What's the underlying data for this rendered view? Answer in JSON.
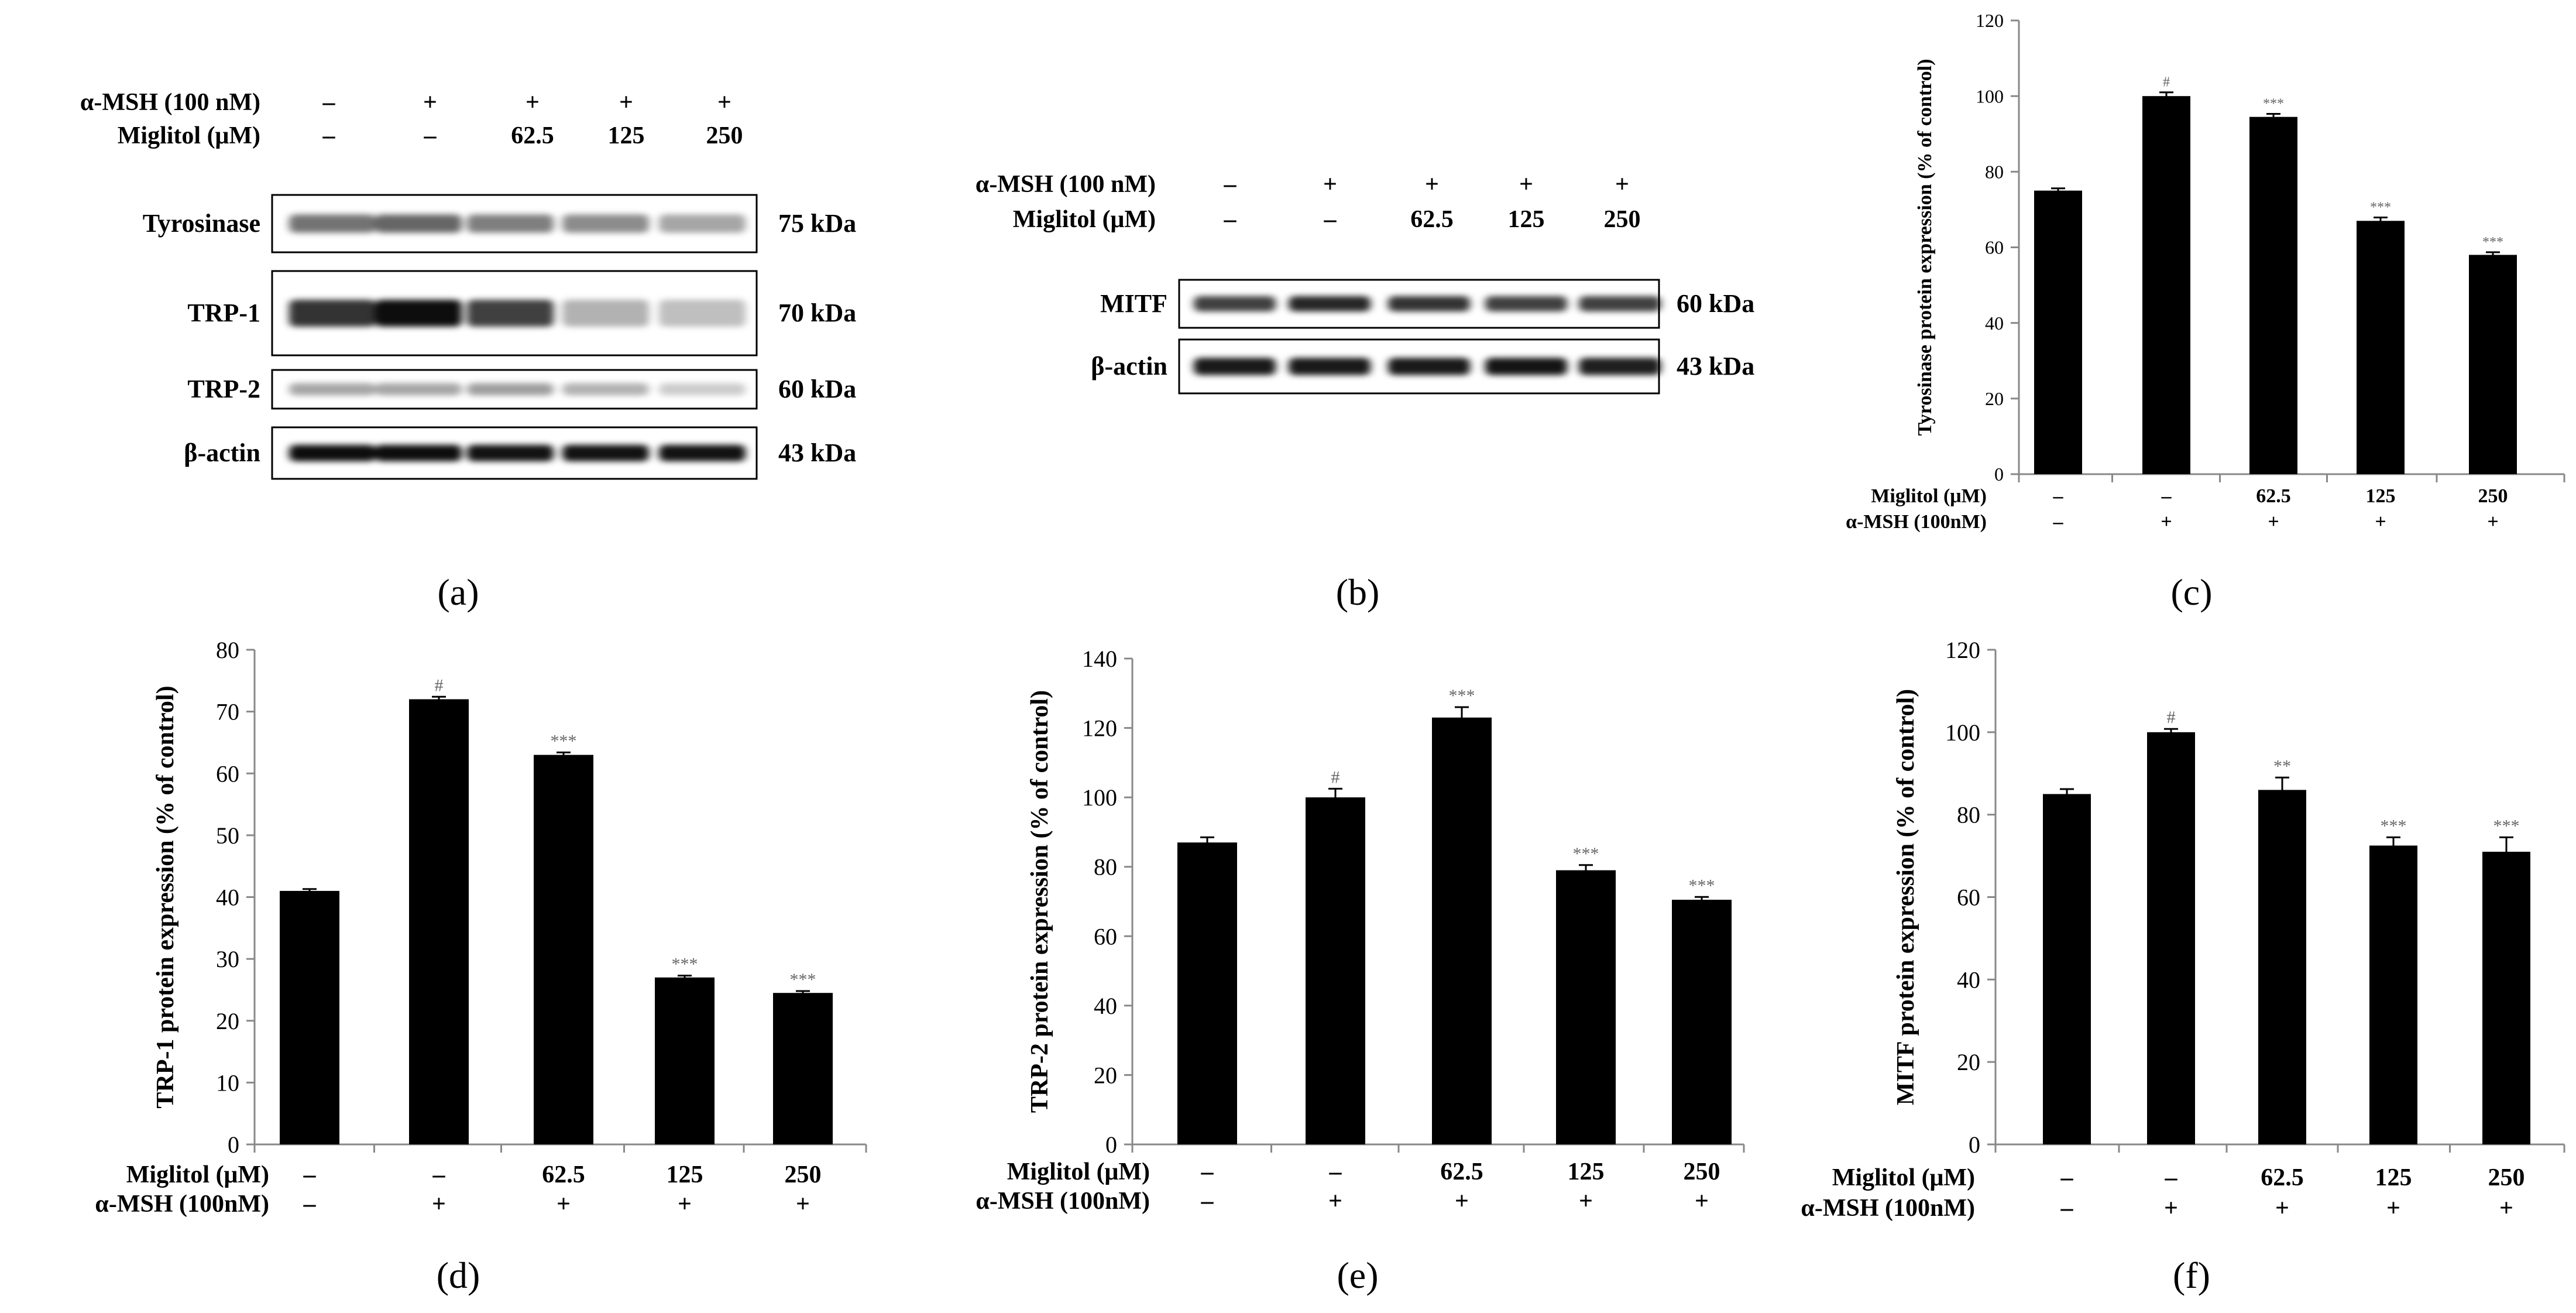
{
  "blots": [
    {
      "panel_label": "(a)",
      "treatments": [
        {
          "label": "α-MSH (100 nM)",
          "values": [
            "–",
            "+",
            "+",
            "+",
            "+"
          ]
        },
        {
          "label": "Miglitol (μM)",
          "values": [
            "–",
            "–",
            "62.5",
            "125",
            "250"
          ]
        }
      ],
      "proteins": [
        {
          "name": "Tyrosinase",
          "size": "75 kDa",
          "intensity": [
            0.55,
            0.6,
            0.5,
            0.45,
            0.35
          ]
        },
        {
          "name": "TRP-1",
          "size": "70 kDa",
          "intensity": [
            0.8,
            0.95,
            0.75,
            0.3,
            0.25
          ]
        },
        {
          "name": "TRP-2",
          "size": "60 kDa",
          "intensity": [
            0.35,
            0.35,
            0.38,
            0.3,
            0.2
          ]
        },
        {
          "name": "β-actin",
          "size": "43 kDa",
          "intensity": [
            0.95,
            0.95,
            0.93,
            0.93,
            0.93
          ]
        }
      ]
    },
    {
      "panel_label": "(b)",
      "treatments": [
        {
          "label": "α-MSH (100 nM)",
          "values": [
            "–",
            "+",
            "+",
            "+",
            "+"
          ]
        },
        {
          "label": "Miglitol (μM)",
          "values": [
            "–",
            "–",
            "62.5",
            "125",
            "250"
          ]
        }
      ],
      "proteins": [
        {
          "name": "MITF",
          "size": "60 kDa",
          "intensity": [
            0.75,
            0.85,
            0.8,
            0.75,
            0.75
          ]
        },
        {
          "name": "β-actin",
          "size": "43 kDa",
          "intensity": [
            0.9,
            0.9,
            0.9,
            0.92,
            0.88
          ]
        }
      ]
    }
  ],
  "chart_data": [
    {
      "type": "bar",
      "panel_label": "(c)",
      "ylabel": "Tyrosinase  protein expression  (% of control)",
      "ylim": [
        0,
        120
      ],
      "yticks": [
        "0",
        "20",
        "40",
        "60",
        "80",
        "100",
        "120"
      ],
      "values": [
        75,
        100,
        94.5,
        67,
        58
      ],
      "errors": [
        0.6,
        1.0,
        0.8,
        0.9,
        0.7
      ],
      "annotations": [
        "",
        "#",
        "***",
        "***",
        "***"
      ],
      "row_labels": [
        "Miglitol (μM)",
        "α-MSH (100nM)"
      ],
      "miglitol": [
        "–",
        "–",
        "62.5",
        "125",
        "250"
      ],
      "msh": [
        "–",
        "+",
        "+",
        "+",
        "+"
      ]
    },
    {
      "type": "bar",
      "panel_label": "(d)",
      "ylabel": "TRP-1 protein expression  (% of control)",
      "ylim": [
        0,
        80
      ],
      "yticks": [
        "0",
        "10",
        "20",
        "30",
        "40",
        "50",
        "60",
        "70",
        "80"
      ],
      "values": [
        41,
        72,
        63,
        27,
        24.5
      ],
      "errors": [
        0.3,
        0.4,
        0.4,
        0.3,
        0.3
      ],
      "annotations": [
        "",
        "#",
        "***",
        "***",
        "***"
      ],
      "row_labels": [
        "Miglitol (μM)",
        "α-MSH (100nM)"
      ],
      "miglitol": [
        "–",
        "–",
        "62.5",
        "125",
        "250"
      ],
      "msh": [
        "–",
        "+",
        "+",
        "+",
        "+"
      ]
    },
    {
      "type": "bar",
      "panel_label": "(e)",
      "ylabel": "TRP-2  protein expression   (% of control)",
      "ylim": [
        0,
        140
      ],
      "yticks": [
        "0",
        "20",
        "40",
        "60",
        "80",
        "100",
        "120",
        "140"
      ],
      "values": [
        87,
        100,
        123,
        79,
        70.5
      ],
      "errors": [
        1.5,
        2.5,
        3.0,
        1.5,
        0.8
      ],
      "annotations": [
        "",
        "#",
        "***",
        "***",
        "***"
      ],
      "row_labels": [
        "Miglitol (μM)",
        "α-MSH (100nM)"
      ],
      "miglitol": [
        "–",
        "–",
        "62.5",
        "125",
        "250"
      ],
      "msh": [
        "–",
        "+",
        "+",
        "+",
        "+"
      ]
    },
    {
      "type": "bar",
      "panel_label": "(f)",
      "ylabel": "MITF protein expression  (% of control)",
      "ylim": [
        0,
        120
      ],
      "yticks": [
        "0",
        "20",
        "40",
        "60",
        "80",
        "100",
        "120"
      ],
      "values": [
        85,
        100,
        86,
        72.5,
        71
      ],
      "errors": [
        1.2,
        0.8,
        3.0,
        2.0,
        3.5
      ],
      "annotations": [
        "",
        "#",
        "**",
        "***",
        "***"
      ],
      "row_labels": [
        "Miglitol (μM)",
        "α-MSH (100nM)"
      ],
      "miglitol": [
        "–",
        "–",
        "62.5",
        "125",
        "250"
      ],
      "msh": [
        "–",
        "+",
        "+",
        "+",
        "+"
      ]
    }
  ]
}
